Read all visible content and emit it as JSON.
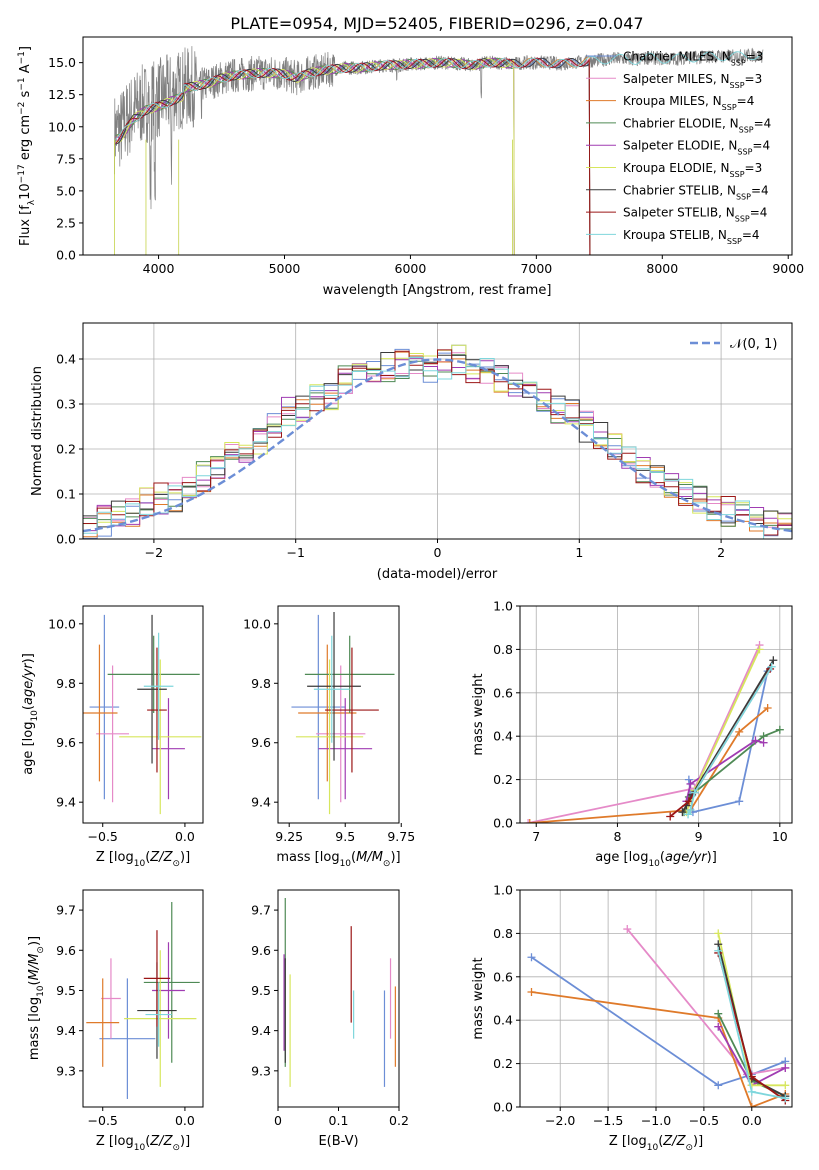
{
  "figure": {
    "title": "PLATE=0954, MJD=52405, FIBERID=0296, z=0.047"
  },
  "colors": {
    "Chabrier MILES": "#6c8ed6",
    "Salpeter MILES": "#e58ac8",
    "Kroupa MILES": "#df7a2a",
    "Chabrier ELODIE": "#4f8a55",
    "Salpeter ELODIE": "#a03cb2",
    "Kroupa ELODIE": "#d7e65d",
    "Chabrier STELIB": "#3a3a3a",
    "Salpeter STELIB": "#9b1616",
    "Kroupa STELIB": "#7fd6dc",
    "data": "#808080",
    "gaussian": "#6c8ed6"
  },
  "chart_data": [
    {
      "id": "spectrum",
      "type": "line",
      "title": "PLATE=0954, MJD=52405, FIBERID=0296, z=0.047",
      "xlabel": "wavelength [Angstrom, rest frame]",
      "ylabel": "Flux [f_λ10^-17 erg cm^-2 s^-1 A^-1]",
      "xlim": [
        3400,
        9030
      ],
      "ylim": [
        0,
        17
      ],
      "xticks": [
        4000,
        5000,
        6000,
        7000,
        8000,
        9000
      ],
      "yticks": [
        0.0,
        2.5,
        5.0,
        7.5,
        10.0,
        12.5,
        15.0
      ],
      "legend_position": "right",
      "series": [
        {
          "name": "Chabrier MILES, N_SSP=3"
        },
        {
          "name": "Salpeter MILES, N_SSP=3"
        },
        {
          "name": "Kroupa MILES, N_SSP=4"
        },
        {
          "name": "Chabrier ELODIE, N_SSP=4"
        },
        {
          "name": "Salpeter ELODIE, N_SSP=4"
        },
        {
          "name": "Kroupa ELODIE, N_SSP=3"
        },
        {
          "name": "Chabrier STELIB, N_SSP=4"
        },
        {
          "name": "Salpeter STELIB, N_SSP=4"
        },
        {
          "name": "Kroupa STELIB, N_SSP=4"
        }
      ],
      "observed": {
        "x": [
          3650,
          3700,
          3800,
          3900,
          4000,
          4100,
          4200,
          4300,
          4400,
          4500,
          4600,
          4700,
          4800,
          4900,
          5000,
          5100,
          5200,
          5300,
          5400,
          5500,
          5600,
          5700,
          5800,
          5900,
          6000,
          6100,
          6200,
          6300,
          6400,
          6500,
          6600,
          6700,
          6800,
          6900,
          7000,
          7100,
          7200,
          7300,
          7400,
          7500,
          7600,
          7700,
          7800,
          7900,
          8000,
          8100,
          8200,
          8300,
          8400,
          8500,
          8600,
          8700,
          8800
        ],
        "y": [
          9.5,
          9.8,
          11.2,
          11.9,
          12.2,
          12.6,
          13.0,
          13.2,
          13.4,
          13.8,
          14.0,
          14.1,
          14.2,
          14.2,
          14.1,
          13.8,
          14.2,
          14.4,
          14.5,
          14.6,
          14.6,
          14.7,
          14.8,
          14.8,
          14.9,
          14.9,
          15.0,
          15.0,
          14.9,
          14.8,
          15.0,
          15.0,
          14.9,
          15.0,
          15.0,
          15.0,
          14.9,
          15.0,
          15.1,
          15.2,
          15.3,
          15.3,
          15.2,
          15.4,
          15.3,
          15.3,
          15.4,
          15.4,
          15.5,
          15.5,
          15.5,
          15.6,
          15.5
        ]
      }
    },
    {
      "id": "residuals",
      "type": "histogram",
      "xlabel": "(data-model)/error",
      "ylabel": "Normed distribution",
      "xlim": [
        -2.5,
        2.5
      ],
      "ylim": [
        0,
        0.48
      ],
      "xticks": [
        -2,
        -1,
        0,
        1,
        2
      ],
      "yticks": [
        0.0,
        0.1,
        0.2,
        0.3,
        0.4
      ],
      "legend": [
        "N(0,1)"
      ],
      "legend_position": "top-right",
      "grid": true,
      "bin_width": 0.1,
      "series": [
        {
          "values": [
            0.03,
            0.04,
            0.05,
            0.06,
            0.08,
            0.09,
            0.09,
            0.12,
            0.14,
            0.15,
            0.18,
            0.2,
            0.22,
            0.25,
            0.28,
            0.29,
            0.31,
            0.32,
            0.35,
            0.36,
            0.37,
            0.38,
            0.39,
            0.4,
            0.38,
            0.39,
            0.4,
            0.38,
            0.37,
            0.36,
            0.34,
            0.33,
            0.31,
            0.29,
            0.28,
            0.25,
            0.23,
            0.2,
            0.18,
            0.16,
            0.14,
            0.12,
            0.1,
            0.09,
            0.07,
            0.06,
            0.05,
            0.04,
            0.03,
            0.03
          ]
        }
      ]
    },
    {
      "id": "age-vs-Z",
      "type": "errorbar",
      "xlabel": "Z [log10(Z/Z☉)]",
      "ylabel": "age [log10(age/yr)]",
      "xlim": [
        -0.62,
        0.11
      ],
      "ylim": [
        9.33,
        10.06
      ],
      "xticks": [
        -0.5,
        0.0
      ],
      "xticklabels": [
        "−0.5",
        "0.0"
      ],
      "yticks": [
        9.4,
        9.6,
        9.8,
        10.0
      ],
      "points": [
        {
          "series": "Chabrier MILES",
          "x": -0.49,
          "xerr": 0.09,
          "y": 9.72,
          "yerr": 0.31
        },
        {
          "series": "Salpeter MILES",
          "x": -0.44,
          "xerr": 0.1,
          "y": 9.63,
          "yerr": 0.23
        },
        {
          "series": "Kroupa MILES",
          "x": -0.52,
          "xerr": 0.11,
          "y": 9.7,
          "yerr": 0.23
        },
        {
          "series": "Chabrier ELODIE",
          "x": -0.19,
          "xerr": 0.28,
          "y": 9.83,
          "yerr": 0.13
        },
        {
          "series": "Salpeter ELODIE",
          "x": -0.1,
          "xerr": 0.1,
          "y": 9.58,
          "yerr": 0.17
        },
        {
          "series": "Kroupa ELODIE",
          "x": -0.15,
          "xerr": 0.25,
          "y": 9.62,
          "yerr": 0.26
        },
        {
          "series": "Chabrier STELIB",
          "x": -0.2,
          "xerr": 0.09,
          "y": 9.78,
          "yerr": 0.25
        },
        {
          "series": "Salpeter STELIB",
          "x": -0.17,
          "xerr": 0.06,
          "y": 9.71,
          "yerr": 0.21
        },
        {
          "series": "Kroupa STELIB",
          "x": -0.16,
          "xerr": 0.09,
          "y": 9.79,
          "yerr": 0.18
        }
      ]
    },
    {
      "id": "age-vs-mass",
      "type": "errorbar",
      "xlabel": "mass [log10(M/M☉)]",
      "ylabel": "",
      "xlim": [
        9.2,
        9.74
      ],
      "ylim": [
        9.33,
        10.06
      ],
      "xticks": [
        9.25,
        9.5,
        9.75
      ],
      "yticks": [
        9.4,
        9.6,
        9.8,
        10.0
      ],
      "points": [
        {
          "series": "Chabrier MILES",
          "x": 9.38,
          "xerr": 0.12,
          "y": 9.72,
          "yerr": 0.31
        },
        {
          "series": "Salpeter MILES",
          "x": 9.48,
          "xerr": 0.11,
          "y": 9.63,
          "yerr": 0.23
        },
        {
          "series": "Kroupa MILES",
          "x": 9.42,
          "xerr": 0.13,
          "y": 9.7,
          "yerr": 0.23
        },
        {
          "series": "Chabrier ELODIE",
          "x": 9.52,
          "xerr": 0.2,
          "y": 9.83,
          "yerr": 0.13
        },
        {
          "series": "Salpeter ELODIE",
          "x": 9.5,
          "xerr": 0.12,
          "y": 9.58,
          "yerr": 0.17
        },
        {
          "series": "Kroupa ELODIE",
          "x": 9.43,
          "xerr": 0.15,
          "y": 9.62,
          "yerr": 0.26
        },
        {
          "series": "Chabrier STELIB",
          "x": 9.45,
          "xerr": 0.12,
          "y": 9.79,
          "yerr": 0.25
        },
        {
          "series": "Salpeter STELIB",
          "x": 9.53,
          "xerr": 0.12,
          "y": 9.71,
          "yerr": 0.21
        },
        {
          "series": "Kroupa STELIB",
          "x": 9.44,
          "xerr": 0.08,
          "y": 9.78,
          "yerr": 0.18
        }
      ]
    },
    {
      "id": "mass-weight-vs-age",
      "type": "line",
      "xlabel": "age [log10(age/yr)]",
      "ylabel": "mass weight",
      "xlim": [
        6.8,
        10.15
      ],
      "ylim": [
        0,
        1
      ],
      "xticks": [
        7,
        8,
        9,
        10
      ],
      "yticks": [
        0.0,
        0.2,
        0.4,
        0.6,
        0.8,
        1.0
      ],
      "grid": true,
      "series": [
        {
          "key": "Chabrier MILES",
          "x": [
            9.85,
            9.5,
            8.93,
            8.88
          ],
          "y": [
            0.7,
            0.1,
            0.05,
            0.2
          ]
        },
        {
          "key": "Salpeter MILES",
          "x": [
            9.75,
            8.95,
            6.9
          ],
          "y": [
            0.82,
            0.16,
            0.0
          ]
        },
        {
          "key": "Kroupa MILES",
          "x": [
            9.85,
            9.5,
            8.9,
            6.92
          ],
          "y": [
            0.53,
            0.42,
            0.06,
            0.0
          ]
        },
        {
          "key": "Chabrier ELODIE",
          "x": [
            10.0,
            9.8,
            8.88,
            8.82
          ],
          "y": [
            0.43,
            0.4,
            0.12,
            0.05
          ]
        },
        {
          "key": "Salpeter ELODIE",
          "x": [
            9.8,
            9.7,
            8.9,
            8.85
          ],
          "y": [
            0.37,
            0.38,
            0.18,
            0.1
          ]
        },
        {
          "key": "Kroupa ELODIE",
          "x": [
            9.75,
            8.95,
            8.85
          ],
          "y": [
            0.8,
            0.15,
            0.05
          ]
        },
        {
          "key": "Chabrier STELIB",
          "x": [
            9.92,
            8.92,
            8.85,
            8.8
          ],
          "y": [
            0.75,
            0.13,
            0.08,
            0.05
          ]
        },
        {
          "key": "Salpeter STELIB",
          "x": [
            9.88,
            8.95,
            8.88,
            8.65
          ],
          "y": [
            0.71,
            0.14,
            0.1,
            0.03
          ]
        },
        {
          "key": "Kroupa STELIB",
          "x": [
            9.9,
            8.95,
            8.9,
            8.87
          ],
          "y": [
            0.72,
            0.14,
            0.06,
            0.04
          ]
        }
      ]
    },
    {
      "id": "mass-vs-Z",
      "type": "errorbar",
      "xlabel": "Z [log10(Z/Z☉)]",
      "ylabel": "mass [log10(M/M☉)]",
      "xlim": [
        -0.62,
        0.11
      ],
      "ylim": [
        9.21,
        9.75
      ],
      "xticks": [
        -0.5,
        0.0
      ],
      "xticklabels": [
        "−0.5",
        "0.0"
      ],
      "yticks": [
        9.3,
        9.4,
        9.5,
        9.6,
        9.7
      ],
      "points": [
        {
          "series": "Chabrier MILES",
          "x": -0.35,
          "xerr": 0.17,
          "y": 9.38,
          "yerr": 0.15
        },
        {
          "series": "Salpeter MILES",
          "x": -0.45,
          "xerr": 0.06,
          "y": 9.48,
          "yerr": 0.1
        },
        {
          "series": "Kroupa MILES",
          "x": -0.5,
          "xerr": 0.1,
          "y": 9.42,
          "yerr": 0.11
        },
        {
          "series": "Chabrier ELODIE",
          "x": -0.08,
          "xerr": 0.17,
          "y": 9.52,
          "yerr": 0.2
        },
        {
          "series": "Salpeter ELODIE",
          "x": -0.1,
          "xerr": 0.1,
          "y": 9.5,
          "yerr": 0.12
        },
        {
          "series": "Kroupa ELODIE",
          "x": -0.15,
          "xerr": 0.22,
          "y": 9.43,
          "yerr": 0.17
        },
        {
          "series": "Chabrier STELIB",
          "x": -0.17,
          "xerr": 0.12,
          "y": 9.45,
          "yerr": 0.12
        },
        {
          "series": "Salpeter STELIB",
          "x": -0.17,
          "xerr": 0.08,
          "y": 9.53,
          "yerr": 0.12
        },
        {
          "series": "Kroupa STELIB",
          "x": -0.16,
          "xerr": 0.08,
          "y": 9.44,
          "yerr": 0.08
        }
      ]
    },
    {
      "id": "mass-vs-EBV",
      "type": "errorbar",
      "xlabel": "E(B-V)",
      "ylabel": "",
      "xlim": [
        0.0,
        0.2
      ],
      "ylim": [
        9.21,
        9.75
      ],
      "xticks": [
        0.0,
        0.1,
        0.2
      ],
      "yticks": [
        9.3,
        9.4,
        9.5,
        9.6,
        9.7
      ],
      "points": [
        {
          "series": "Chabrier MILES",
          "x": 0.176,
          "y": 9.38,
          "yerr": 0.12
        },
        {
          "series": "Salpeter MILES",
          "x": 0.186,
          "y": 9.48,
          "yerr": 0.1
        },
        {
          "series": "Kroupa MILES",
          "x": 0.194,
          "y": 9.41,
          "yerr": 0.1
        },
        {
          "series": "Chabrier ELODIE",
          "x": 0.012,
          "y": 9.52,
          "yerr": 0.21
        },
        {
          "series": "Salpeter ELODIE",
          "x": 0.01,
          "y": 9.47,
          "yerr": 0.12
        },
        {
          "series": "Kroupa ELODIE",
          "x": 0.02,
          "y": 9.4,
          "yerr": 0.14
        },
        {
          "series": "Chabrier STELIB",
          "x": 0.012,
          "y": 9.45,
          "yerr": 0.13
        },
        {
          "series": "Salpeter STELIB",
          "x": 0.121,
          "y": 9.54,
          "yerr": 0.12
        },
        {
          "series": "Kroupa STELIB",
          "x": 0.125,
          "y": 9.44,
          "yerr": 0.06
        }
      ]
    },
    {
      "id": "mass-weight-vs-Z",
      "type": "line",
      "xlabel": "Z [log10(Z/Z☉)]",
      "ylabel": "mass weight",
      "xlim": [
        -2.42,
        0.42
      ],
      "ylim": [
        0,
        1
      ],
      "xticks": [
        -2.0,
        -1.5,
        -1.0,
        -0.5,
        0.0
      ],
      "xticklabels": [
        "−2.0",
        "−1.5",
        "−1.0",
        "−0.5",
        "0.0"
      ],
      "yticks": [
        0.0,
        0.2,
        0.4,
        0.6,
        0.8,
        1.0
      ],
      "grid": true,
      "series": [
        {
          "key": "Chabrier MILES",
          "x": [
            -2.3,
            -0.35,
            0.0,
            0.35
          ],
          "y": [
            0.69,
            0.1,
            0.15,
            0.21
          ]
        },
        {
          "key": "Salpeter MILES",
          "x": [
            -1.3,
            -0.05,
            0.35
          ],
          "y": [
            0.82,
            0.15,
            0.18
          ]
        },
        {
          "key": "Kroupa MILES",
          "x": [
            -2.3,
            -0.35,
            0.0,
            0.35
          ],
          "y": [
            0.53,
            0.41,
            0.0,
            0.06
          ]
        },
        {
          "key": "Chabrier ELODIE",
          "x": [
            -0.35,
            0.0,
            0.35
          ],
          "y": [
            0.43,
            0.12,
            0.05
          ]
        },
        {
          "key": "Salpeter ELODIE",
          "x": [
            -0.35,
            0.0,
            0.35
          ],
          "y": [
            0.37,
            0.1,
            0.18
          ]
        },
        {
          "key": "Kroupa ELODIE",
          "x": [
            -0.35,
            0.0,
            0.35
          ],
          "y": [
            0.8,
            0.1,
            0.1
          ]
        },
        {
          "key": "Chabrier STELIB",
          "x": [
            -0.35,
            0.0,
            0.35
          ],
          "y": [
            0.75,
            0.13,
            0.05
          ]
        },
        {
          "key": "Salpeter STELIB",
          "x": [
            -0.35,
            0.0,
            0.35
          ],
          "y": [
            0.71,
            0.14,
            0.03
          ]
        },
        {
          "key": "Kroupa STELIB",
          "x": [
            -0.35,
            0.0,
            0.35
          ],
          "y": [
            0.72,
            0.07,
            0.04
          ]
        }
      ]
    }
  ]
}
